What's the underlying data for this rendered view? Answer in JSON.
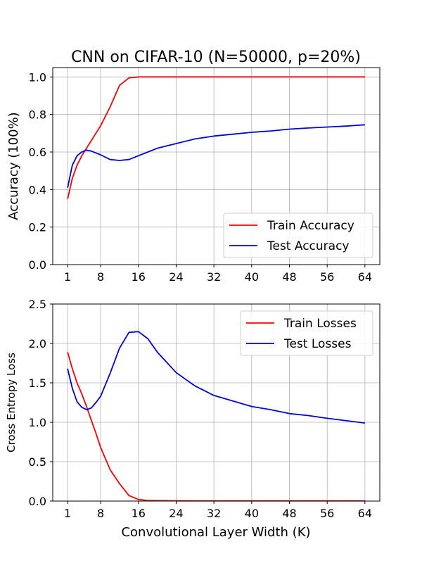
{
  "title": "CNN on CIFAR-10 (N=50000, p=20%)",
  "xlabel": "Convolutional Layer Width (K)",
  "chart_data": [
    {
      "type": "line",
      "ylabel": "Accuracy (100%)",
      "xlim": [
        -2.15,
        67.15
      ],
      "ylim": [
        0.0,
        1.05
      ],
      "xticks": [
        1,
        8,
        16,
        24,
        32,
        40,
        48,
        56,
        64
      ],
      "yticks": [
        0.0,
        0.2,
        0.4,
        0.6,
        0.8,
        1.0
      ],
      "ytick_labels": [
        "0.0",
        "0.2",
        "0.4",
        "0.6",
        "0.8",
        "1.0"
      ],
      "grid": true,
      "legend": "lower-right",
      "x": [
        1,
        2,
        3,
        4,
        5,
        6,
        7,
        8,
        10,
        12,
        14,
        16,
        18,
        20,
        24,
        28,
        32,
        36,
        40,
        44,
        48,
        52,
        56,
        60,
        64
      ],
      "series": [
        {
          "name": "Train Accuracy",
          "color": "#ff0000",
          "values": [
            0.35,
            0.46,
            0.53,
            0.58,
            0.62,
            0.66,
            0.7,
            0.74,
            0.84,
            0.955,
            0.995,
            1.0,
            1.0,
            1.0,
            1.0,
            1.0,
            1.0,
            1.0,
            1.0,
            1.0,
            1.0,
            1.0,
            1.0,
            1.0,
            1.0
          ]
        },
        {
          "name": "Test Accuracy",
          "color": "#0000dd",
          "values": [
            0.41,
            0.53,
            0.58,
            0.6,
            0.61,
            0.605,
            0.595,
            0.585,
            0.56,
            0.555,
            0.56,
            0.58,
            0.6,
            0.62,
            0.645,
            0.67,
            0.685,
            0.695,
            0.705,
            0.712,
            0.722,
            0.728,
            0.733,
            0.738,
            0.745
          ]
        }
      ]
    },
    {
      "type": "line",
      "ylabel": "Cross Entropy Loss",
      "xlim": [
        -2.15,
        67.15
      ],
      "ylim": [
        0.0,
        2.5
      ],
      "xticks": [
        1,
        8,
        16,
        24,
        32,
        40,
        48,
        56,
        64
      ],
      "yticks": [
        0.0,
        0.5,
        1.0,
        1.5,
        2.0,
        2.5
      ],
      "ytick_labels": [
        "0.0",
        "0.5",
        "1.0",
        "1.5",
        "2.0",
        "2.5"
      ],
      "grid": true,
      "legend": "upper-right",
      "x": [
        1,
        2,
        3,
        4,
        5,
        6,
        7,
        8,
        10,
        12,
        14,
        16,
        18,
        20,
        24,
        28,
        32,
        36,
        40,
        44,
        48,
        52,
        56,
        60,
        64
      ],
      "series": [
        {
          "name": "Train Losses",
          "color": "#ff0000",
          "values": [
            1.89,
            1.68,
            1.5,
            1.36,
            1.2,
            1.03,
            0.86,
            0.68,
            0.4,
            0.22,
            0.07,
            0.02,
            0.008,
            0.005,
            0.003,
            0.002,
            0.002,
            0.002,
            0.002,
            0.002,
            0.002,
            0.002,
            0.002,
            0.002,
            0.002
          ]
        },
        {
          "name": "Test Losses",
          "color": "#0000dd",
          "values": [
            1.68,
            1.43,
            1.26,
            1.19,
            1.16,
            1.18,
            1.25,
            1.33,
            1.62,
            1.94,
            2.14,
            2.15,
            2.06,
            1.89,
            1.63,
            1.46,
            1.34,
            1.27,
            1.2,
            1.16,
            1.11,
            1.085,
            1.05,
            1.02,
            0.99
          ]
        }
      ]
    }
  ]
}
